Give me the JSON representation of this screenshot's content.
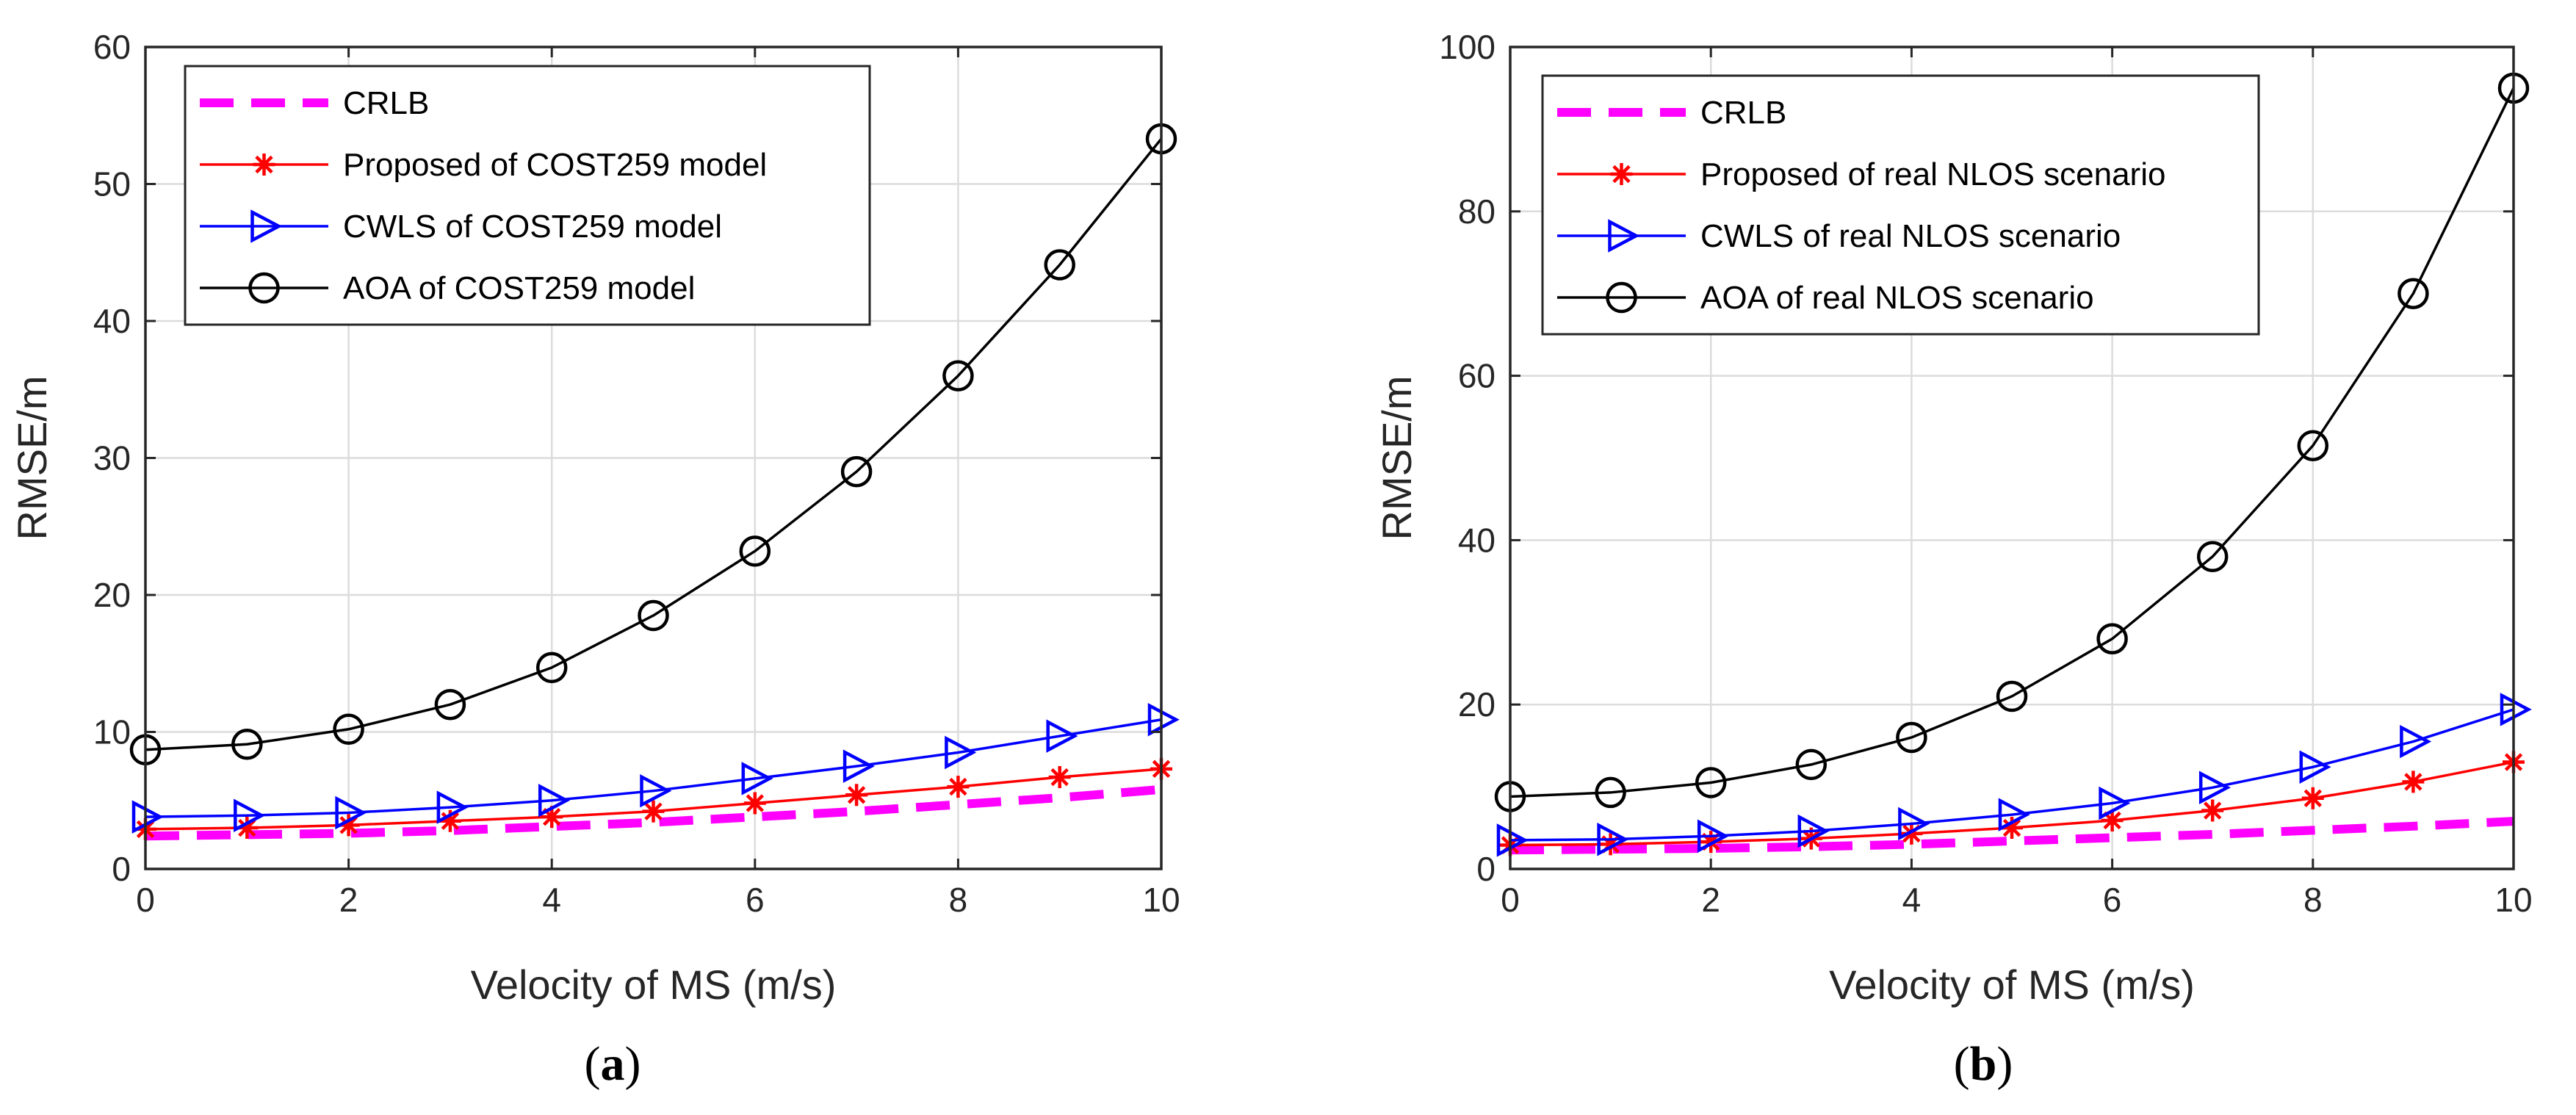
{
  "chart_data": [
    {
      "type": "line",
      "caption_open": "(",
      "caption_letter": "a",
      "caption_close": ")",
      "xlabel": "Velocity of MS (m/s)",
      "ylabel": "RMSE/m",
      "xlim": [
        0,
        10
      ],
      "ylim": [
        0,
        60
      ],
      "xticks": [
        0,
        2,
        4,
        6,
        8,
        10
      ],
      "yticks": [
        0,
        10,
        20,
        30,
        40,
        50,
        60
      ],
      "grid": true,
      "legend_location": "top-left",
      "x": [
        0,
        1,
        2,
        3,
        4,
        5,
        6,
        7,
        8,
        9,
        10
      ],
      "series": [
        {
          "name": "CRLB",
          "color": "#ff00ff",
          "style": "dashed",
          "marker": "none",
          "values": [
            2.4,
            2.5,
            2.6,
            2.8,
            3.1,
            3.4,
            3.8,
            4.2,
            4.7,
            5.2,
            5.8
          ]
        },
        {
          "name": "Proposed of COST259 model",
          "color": "#ff0000",
          "style": "solid",
          "marker": "asterisk",
          "values": [
            2.9,
            3.0,
            3.2,
            3.5,
            3.8,
            4.2,
            4.8,
            5.4,
            6.0,
            6.7,
            7.3
          ]
        },
        {
          "name": "CWLS of COST259 model",
          "color": "#0000ff",
          "style": "solid",
          "marker": "triangle-right",
          "values": [
            3.8,
            3.9,
            4.1,
            4.5,
            5.0,
            5.7,
            6.6,
            7.5,
            8.5,
            9.7,
            10.9
          ]
        },
        {
          "name": "AOA of COST259 model",
          "color": "#000000",
          "style": "solid",
          "marker": "circle",
          "values": [
            8.7,
            9.1,
            10.2,
            12.0,
            14.7,
            18.5,
            23.2,
            29.0,
            36.0,
            44.1,
            53.3
          ]
        }
      ]
    },
    {
      "type": "line",
      "caption_open": "(",
      "caption_letter": "b",
      "caption_close": ")",
      "xlabel": "Velocity of MS (m/s)",
      "ylabel": "RMSE/m",
      "xlim": [
        0,
        10
      ],
      "ylim": [
        0,
        100
      ],
      "xticks": [
        0,
        2,
        4,
        6,
        8,
        10
      ],
      "yticks": [
        0,
        20,
        40,
        60,
        80,
        100
      ],
      "grid": true,
      "legend_location": "top-left",
      "x": [
        0,
        1,
        2,
        3,
        4,
        5,
        6,
        7,
        8,
        9,
        10
      ],
      "series": [
        {
          "name": "CRLB",
          "color": "#ff00ff",
          "style": "dashed",
          "marker": "none",
          "values": [
            2.3,
            2.4,
            2.5,
            2.7,
            3.0,
            3.4,
            3.8,
            4.2,
            4.7,
            5.2,
            5.8
          ]
        },
        {
          "name": "Proposed of real NLOS scenario",
          "color": "#ff0000",
          "style": "solid",
          "marker": "asterisk",
          "values": [
            2.9,
            3.0,
            3.3,
            3.7,
            4.3,
            5.0,
            5.9,
            7.1,
            8.6,
            10.6,
            13.0
          ]
        },
        {
          "name": "CWLS of real NLOS scenario",
          "color": "#0000ff",
          "style": "solid",
          "marker": "triangle-right",
          "values": [
            3.5,
            3.6,
            4.0,
            4.6,
            5.5,
            6.6,
            8.0,
            9.9,
            12.4,
            15.5,
            19.4
          ]
        },
        {
          "name": "AOA of real NLOS scenario",
          "color": "#000000",
          "style": "solid",
          "marker": "circle",
          "values": [
            8.8,
            9.3,
            10.5,
            12.7,
            16.0,
            21.0,
            28.0,
            38.0,
            51.5,
            70.0,
            95.0
          ]
        }
      ]
    }
  ]
}
